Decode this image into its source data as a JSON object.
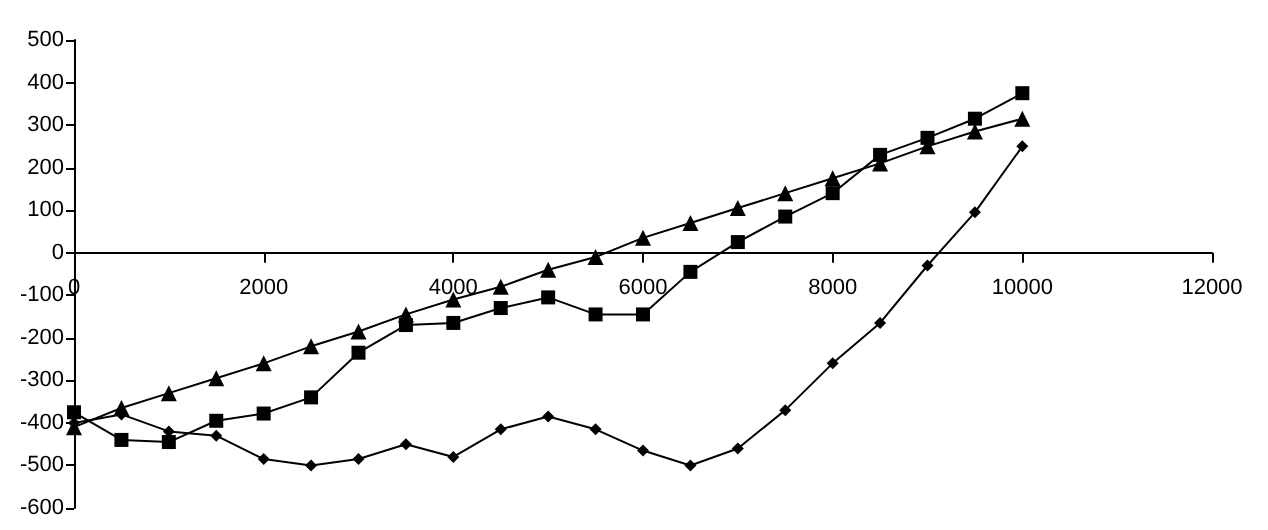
{
  "chart_data": {
    "type": "line",
    "x": [
      0,
      500,
      1000,
      1500,
      2000,
      2500,
      3000,
      3500,
      4000,
      4500,
      5000,
      5500,
      6000,
      6500,
      7000,
      7500,
      8000,
      8500,
      9000,
      9500,
      10000
    ],
    "series": [
      {
        "color": "#000000",
        "marker": "diamond",
        "values": [
          -400,
          -380,
          -420,
          -430,
          -485,
          -500,
          -485,
          -450,
          -480,
          -415,
          -385,
          -415,
          -465,
          -500,
          -460,
          -370,
          -260,
          -165,
          -30,
          95,
          250
        ]
      },
      {
        "color": "#000000",
        "marker": "square",
        "values": [
          -375,
          -440,
          -445,
          -395,
          -378,
          -340,
          -235,
          -170,
          -165,
          -130,
          -105,
          -145,
          -145,
          -45,
          25,
          85,
          140,
          230,
          270,
          315,
          375
        ]
      },
      {
        "color": "#000000",
        "marker": "triangle",
        "values": [
          -410,
          -365,
          -330,
          -295,
          -260,
          -220,
          -185,
          -145,
          -110,
          -80,
          -40,
          -10,
          35,
          70,
          105,
          140,
          175,
          210,
          250,
          285,
          315
        ]
      }
    ],
    "xlim": [
      0,
      12000
    ],
    "xticks": [
      0,
      2000,
      4000,
      6000,
      8000,
      10000,
      12000
    ],
    "ylim": [
      -600,
      500
    ],
    "yticks": [
      -600,
      -500,
      -400,
      -300,
      -200,
      -100,
      0,
      100,
      200,
      300,
      400,
      500
    ],
    "grid": false,
    "line_style": "solid"
  }
}
